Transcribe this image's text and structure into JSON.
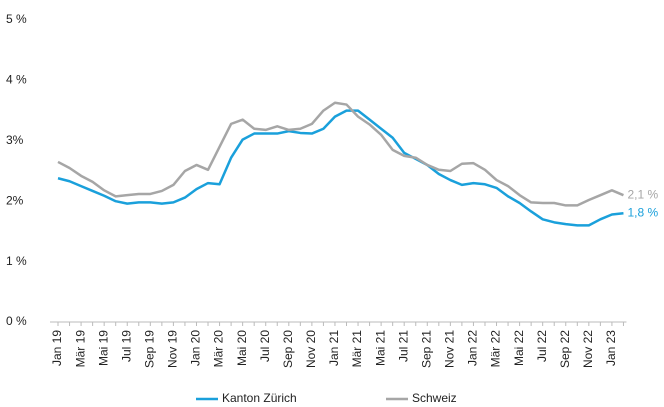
{
  "chart_data": {
    "type": "line",
    "categories": [
      "Jan 19",
      null,
      "Mär 19",
      null,
      "Mai 19",
      null,
      "Jul 19",
      null,
      "Sep 19",
      null,
      "Nov 19",
      null,
      "Jan 20",
      null,
      "Mär 20",
      null,
      "Mai 20",
      null,
      "Jul 20",
      null,
      "Sep 20",
      null,
      "Nov 20",
      null,
      "Jan 21",
      null,
      "Mär 21",
      null,
      "Mai 21",
      null,
      "Jul 21",
      null,
      "Sep 21",
      null,
      "Nov 21",
      null,
      "Jan 22",
      null,
      "Mär 22",
      null,
      "Mai 22",
      null,
      "Jul 22",
      null,
      "Sep 22",
      null,
      "Nov 22",
      null,
      "Jan 23",
      null
    ],
    "series": [
      {
        "name": "Kanton Zürich",
        "color": "#1aa0db",
        "values": [
          2.38,
          2.33,
          2.25,
          2.17,
          2.09,
          2.0,
          1.96,
          1.98,
          1.98,
          1.96,
          1.98,
          2.06,
          2.2,
          2.3,
          2.28,
          2.72,
          3.02,
          3.12,
          3.12,
          3.12,
          3.16,
          3.13,
          3.12,
          3.2,
          3.4,
          3.5,
          3.5,
          3.35,
          3.2,
          3.05,
          2.8,
          2.7,
          2.6,
          2.45,
          2.35,
          2.27,
          2.3,
          2.28,
          2.22,
          2.08,
          1.97,
          1.83,
          1.7,
          1.65,
          1.62,
          1.6,
          1.6,
          1.7,
          1.78,
          1.8
        ],
        "value_labels": [
          null,
          null,
          null,
          null,
          null,
          null,
          null,
          null,
          null,
          null,
          null,
          null,
          null,
          null,
          null,
          null,
          null,
          null,
          null,
          null,
          null,
          null,
          null,
          null,
          null,
          null,
          null,
          null,
          null,
          null,
          null,
          null,
          null,
          null,
          null,
          null,
          null,
          null,
          null,
          null,
          null,
          null,
          null,
          null,
          null,
          null,
          null,
          null,
          null,
          "1,8 %"
        ]
      },
      {
        "name": "Schweiz",
        "color": "#a6a6a6",
        "values": [
          2.65,
          2.55,
          2.42,
          2.32,
          2.18,
          2.08,
          2.1,
          2.12,
          2.12,
          2.17,
          2.27,
          2.5,
          2.6,
          2.52,
          2.9,
          3.28,
          3.35,
          3.2,
          3.18,
          3.24,
          3.18,
          3.2,
          3.28,
          3.5,
          3.63,
          3.6,
          3.4,
          3.27,
          3.1,
          2.85,
          2.75,
          2.72,
          2.6,
          2.52,
          2.5,
          2.62,
          2.63,
          2.52,
          2.35,
          2.25,
          2.1,
          1.98,
          1.97,
          1.97,
          1.93,
          1.93,
          2.02,
          2.1,
          2.18,
          2.1
        ],
        "value_labels": [
          null,
          null,
          null,
          null,
          null,
          null,
          null,
          null,
          null,
          null,
          null,
          null,
          null,
          null,
          null,
          null,
          null,
          null,
          null,
          null,
          null,
          null,
          null,
          null,
          null,
          null,
          null,
          null,
          null,
          null,
          null,
          null,
          null,
          null,
          null,
          null,
          null,
          null,
          null,
          null,
          null,
          null,
          null,
          null,
          null,
          null,
          null,
          null,
          null,
          "2,1 %"
        ]
      }
    ],
    "ylim": [
      0,
      5
    ],
    "yticks": [
      {
        "value": 0,
        "label": "0 %"
      },
      {
        "value": 1,
        "label": "1 %"
      },
      {
        "value": 2,
        "label": "2%"
      },
      {
        "value": 3,
        "label": "3%"
      },
      {
        "value": 4,
        "label": "4 %"
      },
      {
        "value": 5,
        "label": "5 %"
      }
    ],
    "legend": "bottom"
  }
}
